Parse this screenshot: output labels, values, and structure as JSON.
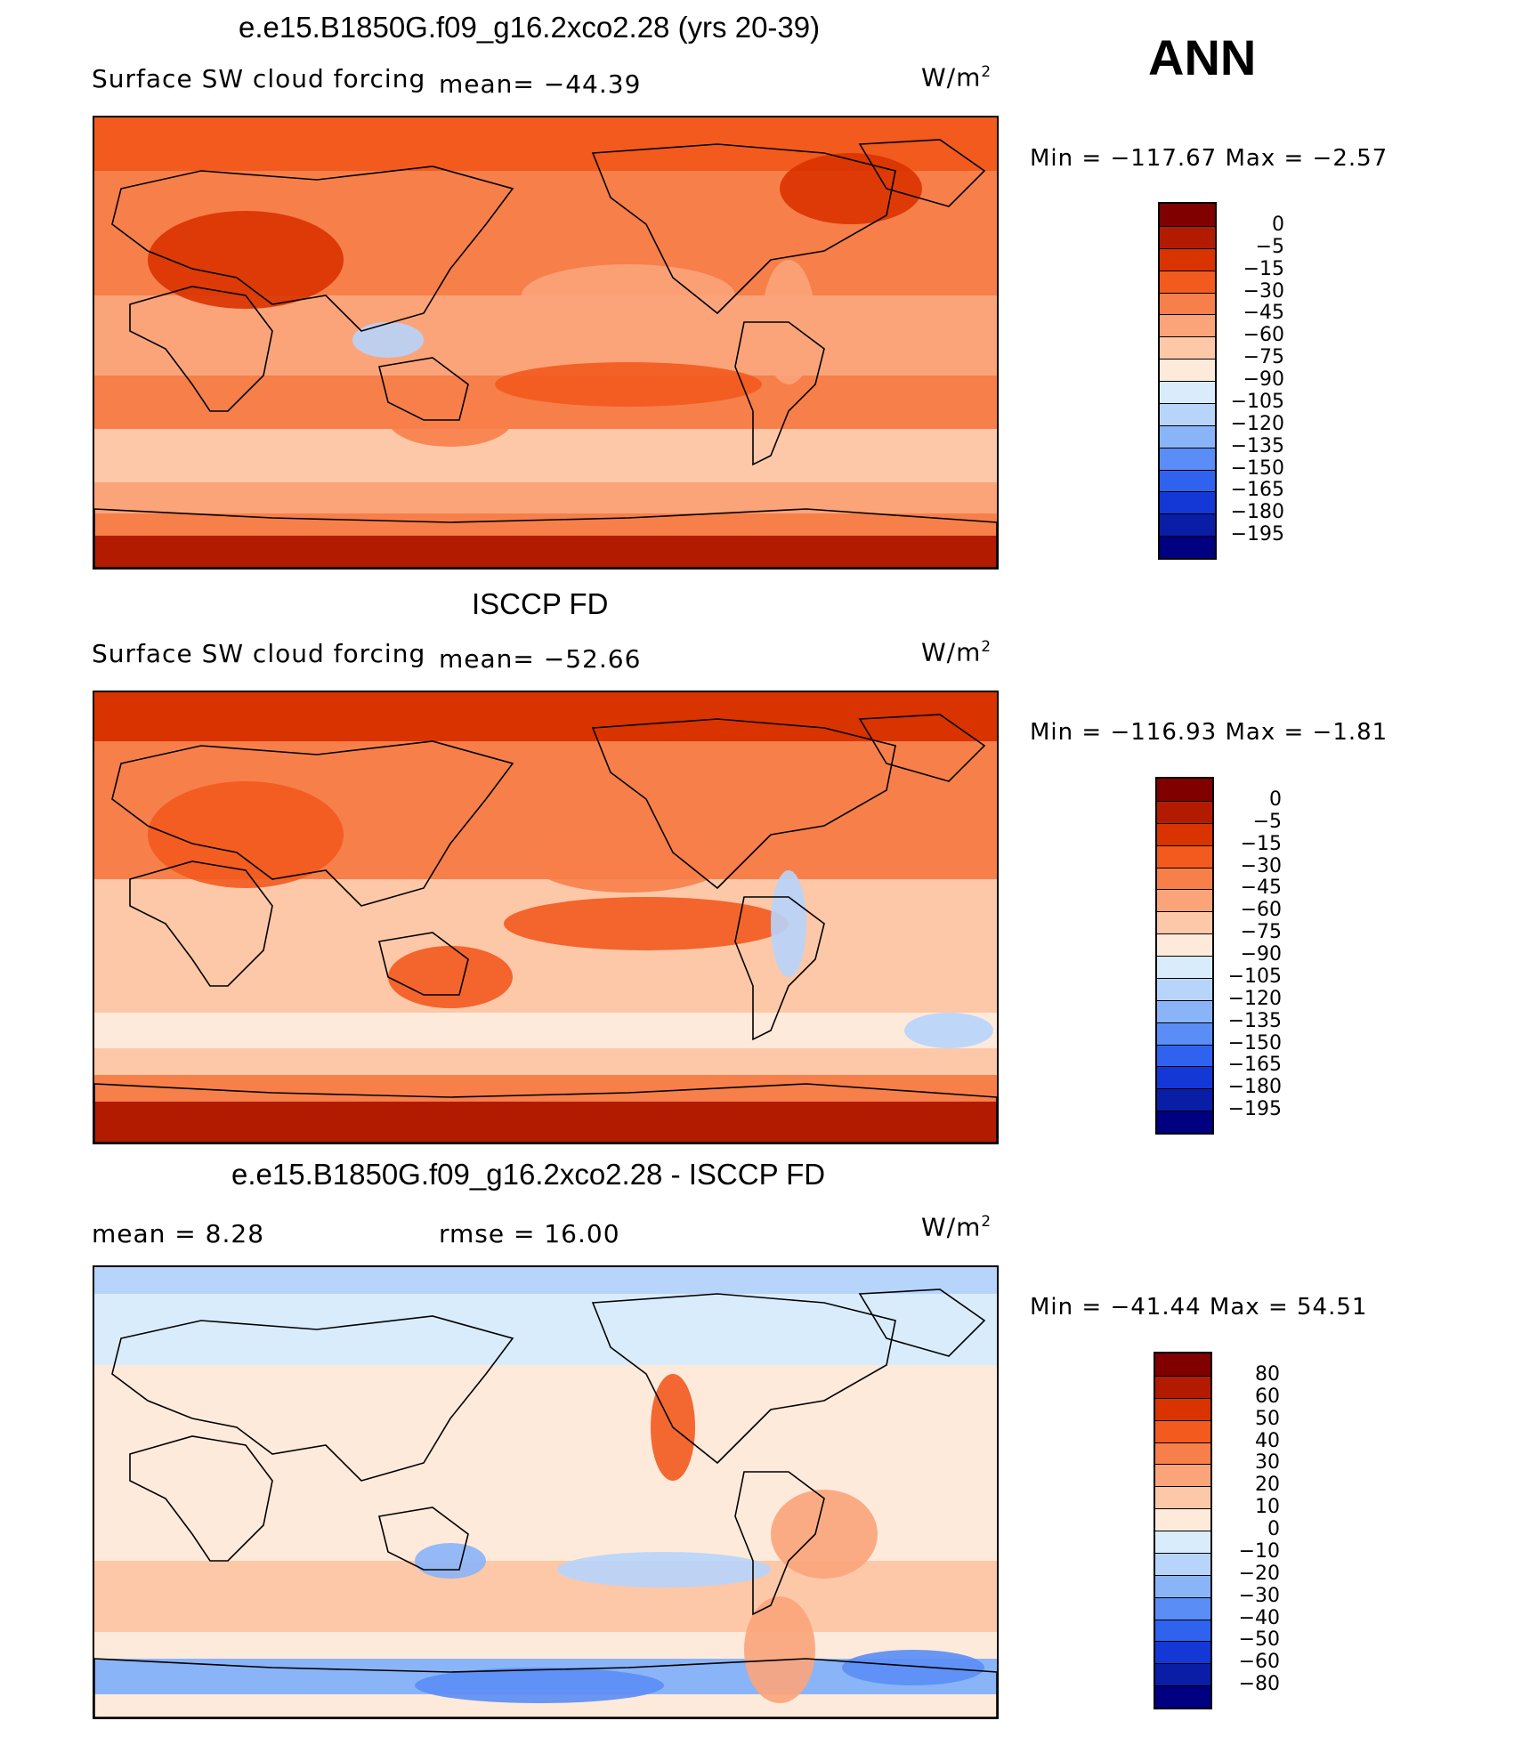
{
  "season": "ANN",
  "panels": [
    {
      "title": "e.e15.B1850G.f09_g16.2xco2.28 (yrs 20-39)",
      "variable": "Surface SW cloud forcing",
      "stat1": "mean= −44.39",
      "stat2": "",
      "units": "W/m",
      "units_exp": "2",
      "minmax": "Min  =  −117.67  Max  =   −2.57",
      "colorbar_labels": [
        "0",
        "−5",
        "−15",
        "−30",
        "−45",
        "−60",
        "−75",
        "−90",
        "−105",
        "−120",
        "−135",
        "−150",
        "−165",
        "−180",
        "−195"
      ]
    },
    {
      "title": "ISCCP FD",
      "variable": "Surface SW cloud forcing",
      "stat1": "mean= −52.66",
      "stat2": "",
      "units": "W/m",
      "units_exp": "2",
      "minmax": "Min  =  −116.93  Max  =   −1.81",
      "colorbar_labels": [
        "0",
        "−5",
        "−15",
        "−30",
        "−45",
        "−60",
        "−75",
        "−90",
        "−105",
        "−120",
        "−135",
        "−150",
        "−165",
        "−180",
        "−195"
      ]
    },
    {
      "title": "e.e15.B1850G.f09_g16.2xco2.28 - ISCCP FD",
      "variable": "",
      "stat1": "mean  =     8.28",
      "stat2": "rmse  =    16.00",
      "units": "W/m",
      "units_exp": "2",
      "minmax": "Min  =  −41.44  Max  =    54.51",
      "colorbar_labels": [
        "80",
        "60",
        "50",
        "40",
        "30",
        "20",
        "10",
        "0",
        "−10",
        "−20",
        "−30",
        "−40",
        "−50",
        "−60",
        "−80"
      ]
    }
  ],
  "colors": {
    "scale": [
      "#800000",
      "#b31b00",
      "#d93300",
      "#f25a1e",
      "#f77f4a",
      "#fba47a",
      "#fdc8a8",
      "#feeadb",
      "#d9ecfb",
      "#b7d4fb",
      "#8ab4f8",
      "#5a8df5",
      "#2f62ef",
      "#1338d6",
      "#0a1da6",
      "#000080"
    ],
    "land_outline": "#000000"
  }
}
